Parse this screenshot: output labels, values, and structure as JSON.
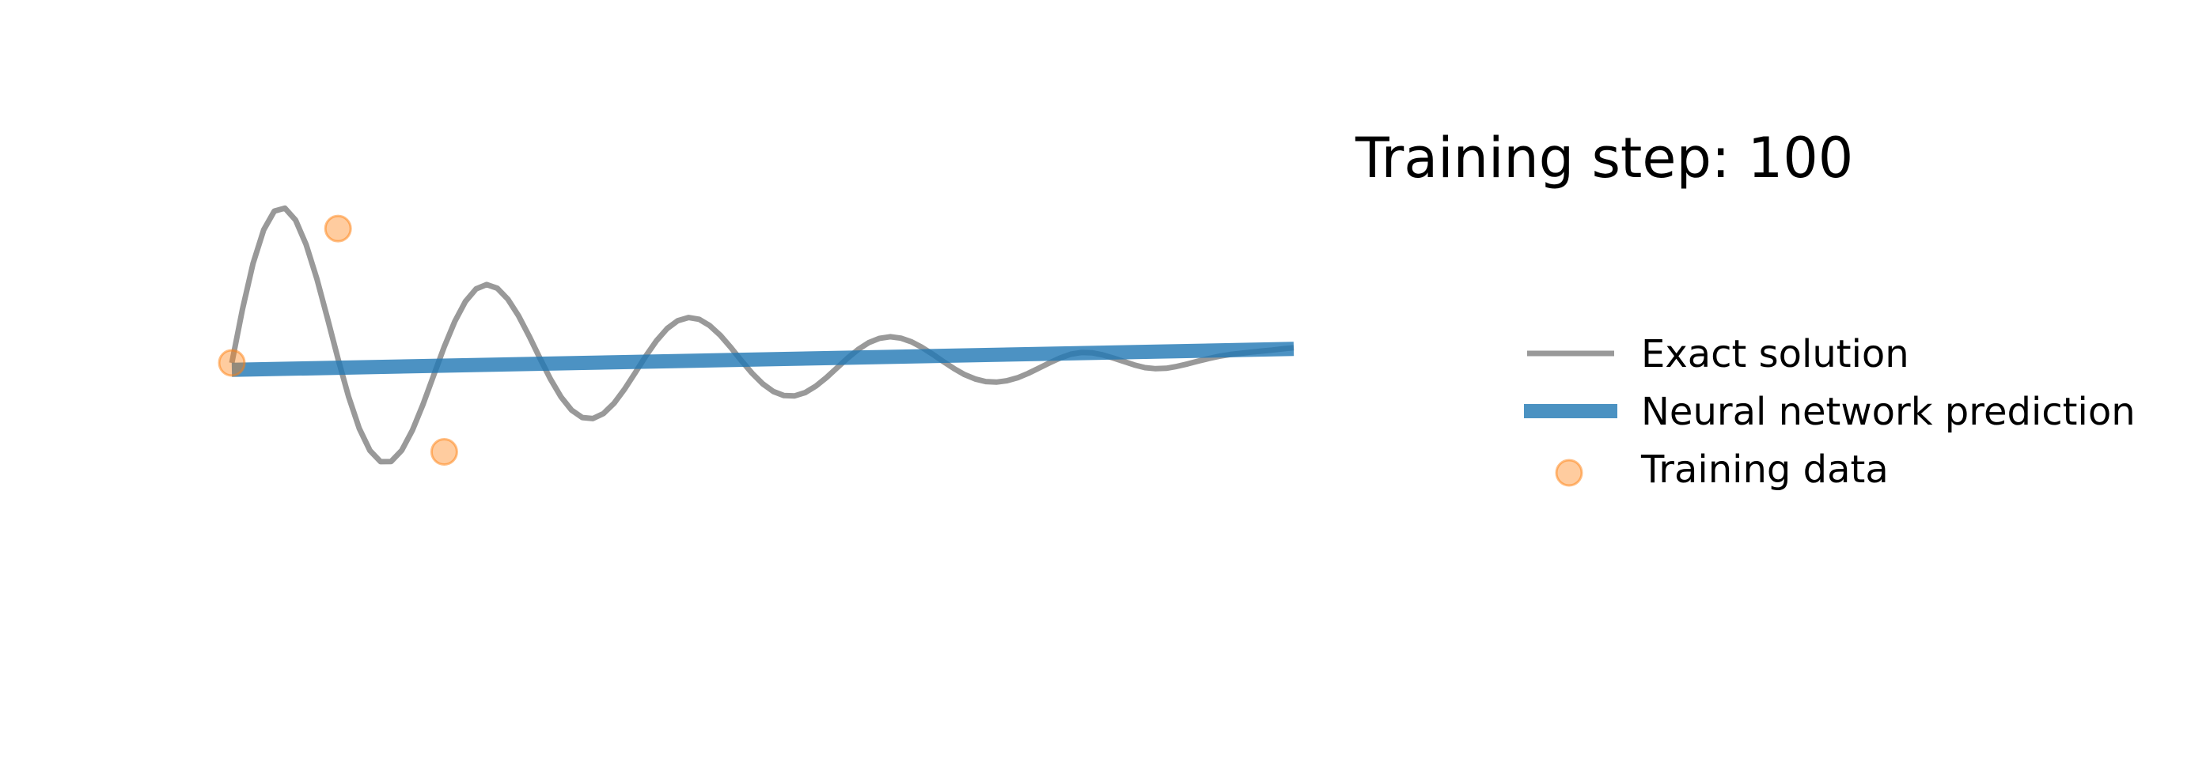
{
  "chart_data": {
    "type": "line",
    "title": "Training step: 100",
    "xlabel": "",
    "ylabel": "",
    "axes_visible": false,
    "grid": false,
    "xlim": [
      0,
      1
    ],
    "ylim": [
      -1.5,
      1.5
    ],
    "legend_position": "right",
    "series": [
      {
        "name": "Exact solution",
        "kind": "line",
        "color": "#999999",
        "function": "damped harmonic oscillator",
        "x": [
          0.0,
          0.01,
          0.02,
          0.03,
          0.04,
          0.05,
          0.06,
          0.07,
          0.08,
          0.09,
          0.1,
          0.11,
          0.12,
          0.13,
          0.14,
          0.15,
          0.16,
          0.17,
          0.18,
          0.19,
          0.2,
          0.21,
          0.22,
          0.23,
          0.24,
          0.25,
          0.26,
          0.27,
          0.28,
          0.29,
          0.3,
          0.31,
          0.32,
          0.33,
          0.34,
          0.35,
          0.36,
          0.37,
          0.38,
          0.39,
          0.4,
          0.41,
          0.42,
          0.43,
          0.44,
          0.45,
          0.46,
          0.47,
          0.48,
          0.49,
          0.5,
          0.51,
          0.52,
          0.53,
          0.54,
          0.55,
          0.56,
          0.57,
          0.58,
          0.59,
          0.6,
          0.61,
          0.62,
          0.63,
          0.64,
          0.65,
          0.66,
          0.67,
          0.68,
          0.69,
          0.7,
          0.71,
          0.72,
          0.73,
          0.74,
          0.75,
          0.76,
          0.77,
          0.78,
          0.79,
          0.8,
          0.81,
          0.82,
          0.83,
          0.84,
          0.85,
          0.86,
          0.87,
          0.88,
          0.89,
          0.9,
          0.91,
          0.92,
          0.93,
          0.94,
          0.95,
          0.96,
          0.97,
          0.98,
          0.99,
          1.0
        ],
        "y": [
          0.0,
          0.307,
          0.57,
          0.763,
          0.87,
          0.887,
          0.819,
          0.678,
          0.483,
          0.257,
          0.023,
          -0.194,
          -0.375,
          -0.502,
          -0.566,
          -0.565,
          -0.501,
          -0.387,
          -0.238,
          -0.072,
          0.092,
          0.238,
          0.352,
          0.424,
          0.449,
          0.428,
          0.365,
          0.27,
          0.153,
          0.028,
          -0.092,
          -0.195,
          -0.271,
          -0.313,
          -0.319,
          -0.29,
          -0.231,
          -0.149,
          -0.055,
          0.041,
          0.128,
          0.197,
          0.242,
          0.26,
          0.25,
          0.214,
          0.158,
          0.088,
          0.012,
          -0.06,
          -0.12,
          -0.164,
          -0.187,
          -0.189,
          -0.17,
          -0.133,
          -0.084,
          -0.028,
          0.028,
          0.078,
          0.117,
          0.141,
          0.15,
          0.142,
          0.121,
          0.089,
          0.05,
          0.008,
          -0.032,
          -0.067,
          -0.092,
          -0.107,
          -0.11,
          -0.102,
          -0.085,
          -0.06,
          -0.03,
          0.0,
          0.028,
          0.05,
          0.06,
          0.058,
          0.046,
          0.028,
          0.008,
          -0.012,
          -0.027,
          -0.033,
          -0.031,
          -0.02,
          -0.006,
          0.01,
          0.025,
          0.038,
          0.048,
          0.055,
          0.062,
          0.068,
          0.074,
          0.081,
          0.087
        ]
      },
      {
        "name": "Neural network prediction",
        "kind": "line",
        "color": "#1f77b4",
        "x": [
          0,
          1
        ],
        "y": [
          -0.04,
          0.08
        ]
      },
      {
        "name": "Training data",
        "kind": "scatter",
        "color": "#ff7f0e",
        "x": [
          0.0,
          0.1,
          0.2
        ],
        "y": [
          0.0,
          0.77,
          -0.51
        ]
      }
    ]
  }
}
